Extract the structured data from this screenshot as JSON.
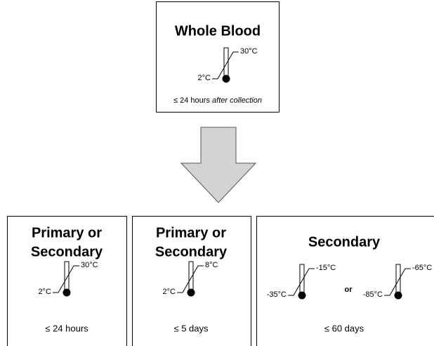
{
  "top": {
    "title": "Whole Blood",
    "thermometer": {
      "high": "30°C",
      "low": "2°C"
    },
    "duration": "≤ 24 hours",
    "duration_note": "after collection"
  },
  "boxes": [
    {
      "title_lines": [
        "Primary or",
        "Secondary"
      ],
      "thermometers": [
        {
          "high": "30°C",
          "low": "2°C"
        }
      ],
      "duration": "≤ 24 hours"
    },
    {
      "title_lines": [
        "Primary or",
        "Secondary"
      ],
      "thermometers": [
        {
          "high": "8°C",
          "low": "2°C"
        }
      ],
      "duration": "≤ 5 days"
    },
    {
      "title_lines": [
        "Secondary"
      ],
      "thermometers": [
        {
          "high": "-15°C",
          "low": "-35°C"
        },
        {
          "high": "-65°C",
          "low": "-85°C"
        }
      ],
      "connector": "or",
      "duration": "≤ 60 days"
    }
  ]
}
